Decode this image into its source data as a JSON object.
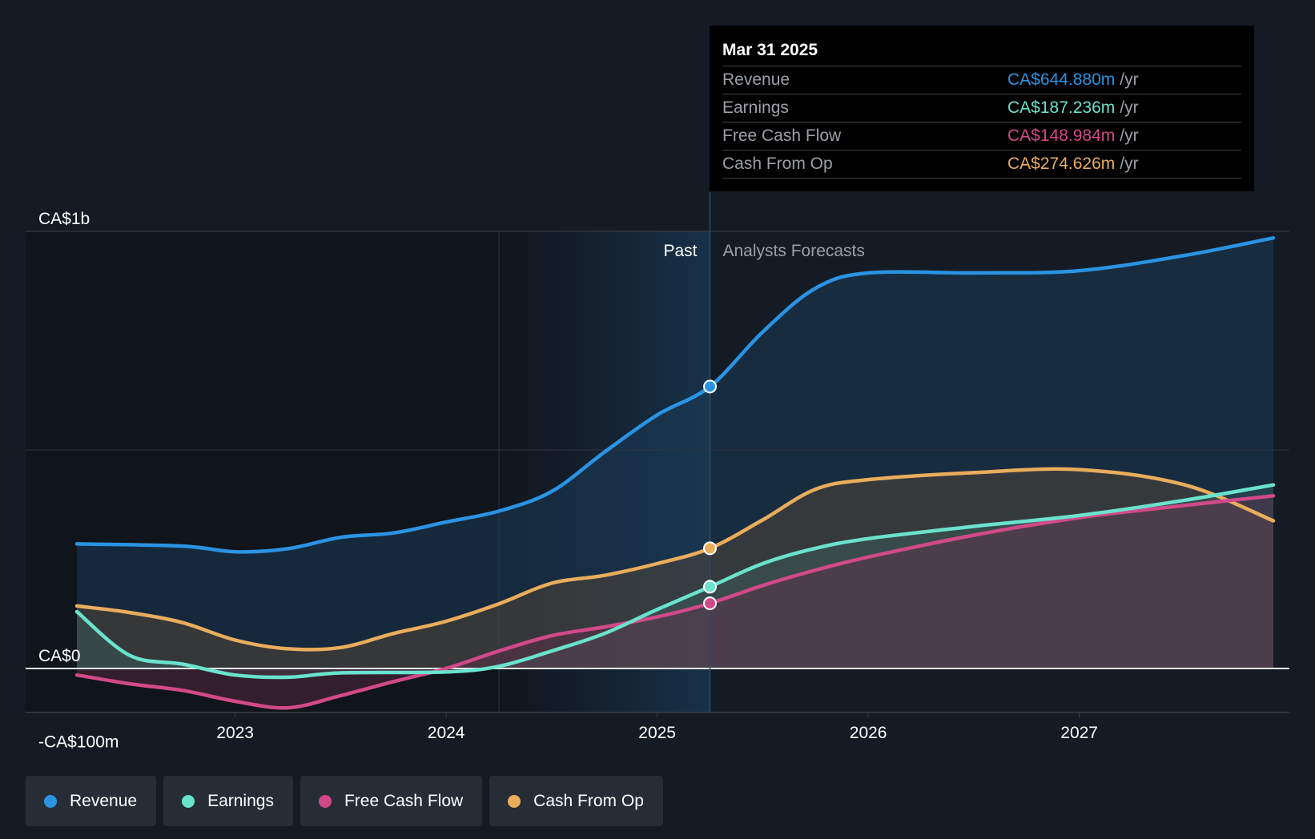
{
  "chart_data": {
    "type": "area",
    "x_label": "",
    "y_label": "",
    "x_range": [
      2022.25,
      2027.92
    ],
    "y_range": [
      -200,
      1000
    ],
    "y_ticks": [
      {
        "value": 1000,
        "label": "CA$1b"
      },
      {
        "value": 0,
        "label": "CA$0"
      },
      {
        "value": -100,
        "label": "-CA$100m"
      }
    ],
    "x_ticks": [
      {
        "value": 2023,
        "label": "2023"
      },
      {
        "value": 2024,
        "label": "2024"
      },
      {
        "value": 2025,
        "label": "2025"
      },
      {
        "value": 2026,
        "label": "2026"
      },
      {
        "value": 2027,
        "label": "2027"
      }
    ],
    "past_label": "Past",
    "forecast_label": "Analysts Forecasts",
    "divider_x": 2025.25,
    "highlight_start_x": 2024.25,
    "units": "CA$m",
    "series": [
      {
        "name": "Revenue",
        "color": "#2a93e3",
        "points": [
          [
            2022.25,
            285
          ],
          [
            2022.75,
            280
          ],
          [
            2023.0,
            267
          ],
          [
            2023.25,
            274
          ],
          [
            2023.5,
            300
          ],
          [
            2023.75,
            310
          ],
          [
            2024.0,
            335
          ],
          [
            2024.25,
            360
          ],
          [
            2024.5,
            405
          ],
          [
            2024.75,
            495
          ],
          [
            2025.0,
            580
          ],
          [
            2025.25,
            645
          ],
          [
            2025.5,
            770
          ],
          [
            2025.75,
            870
          ],
          [
            2026.0,
            905
          ],
          [
            2026.5,
            905
          ],
          [
            2027.0,
            910
          ],
          [
            2027.5,
            945
          ],
          [
            2027.92,
            985
          ]
        ]
      },
      {
        "name": "Earnings",
        "color": "#6ae2cd",
        "points": [
          [
            2022.25,
            130
          ],
          [
            2022.5,
            30
          ],
          [
            2022.75,
            10
          ],
          [
            2023.0,
            -15
          ],
          [
            2023.25,
            -20
          ],
          [
            2023.5,
            -10
          ],
          [
            2024.0,
            -8
          ],
          [
            2024.25,
            5
          ],
          [
            2024.5,
            40
          ],
          [
            2024.75,
            80
          ],
          [
            2025.0,
            135
          ],
          [
            2025.25,
            187
          ],
          [
            2025.5,
            240
          ],
          [
            2025.75,
            275
          ],
          [
            2026.0,
            297
          ],
          [
            2026.5,
            325
          ],
          [
            2027.0,
            350
          ],
          [
            2027.5,
            385
          ],
          [
            2027.92,
            420
          ]
        ]
      },
      {
        "name": "Free Cash Flow",
        "color": "#d2498a",
        "points": [
          [
            2022.25,
            -15
          ],
          [
            2022.5,
            -35
          ],
          [
            2022.75,
            -50
          ],
          [
            2023.0,
            -75
          ],
          [
            2023.25,
            -90
          ],
          [
            2023.5,
            -62
          ],
          [
            2023.75,
            -30
          ],
          [
            2024.0,
            0
          ],
          [
            2024.25,
            40
          ],
          [
            2024.5,
            75
          ],
          [
            2024.75,
            95
          ],
          [
            2025.0,
            118
          ],
          [
            2025.25,
            149
          ],
          [
            2025.5,
            190
          ],
          [
            2025.75,
            225
          ],
          [
            2026.0,
            255
          ],
          [
            2026.5,
            305
          ],
          [
            2027.0,
            345
          ],
          [
            2027.5,
            373
          ],
          [
            2027.92,
            395
          ]
        ]
      },
      {
        "name": "Cash From Op",
        "color": "#e9ad5c",
        "points": [
          [
            2022.25,
            143
          ],
          [
            2022.5,
            128
          ],
          [
            2022.75,
            105
          ],
          [
            2023.0,
            65
          ],
          [
            2023.25,
            45
          ],
          [
            2023.5,
            48
          ],
          [
            2023.75,
            80
          ],
          [
            2024.0,
            108
          ],
          [
            2024.25,
            148
          ],
          [
            2024.5,
            195
          ],
          [
            2024.75,
            213
          ],
          [
            2025.0,
            240
          ],
          [
            2025.25,
            275
          ],
          [
            2025.5,
            340
          ],
          [
            2025.75,
            410
          ],
          [
            2026.0,
            432
          ],
          [
            2026.5,
            448
          ],
          [
            2027.0,
            455
          ],
          [
            2027.5,
            420
          ],
          [
            2027.92,
            338
          ]
        ]
      }
    ],
    "tooltip": {
      "date": "Mar 31 2025",
      "unit": "/yr",
      "rows": [
        {
          "label": "Revenue",
          "value": "CA$644.880m",
          "color": "#2a93e3"
        },
        {
          "label": "Earnings",
          "value": "CA$187.236m",
          "color": "#6ae2cd"
        },
        {
          "label": "Free Cash Flow",
          "value": "CA$148.984m",
          "color": "#d2498a"
        },
        {
          "label": "Cash From Op",
          "value": "CA$274.626m",
          "color": "#e9ad5c"
        }
      ]
    },
    "legend": [
      {
        "label": "Revenue",
        "color": "#2a93e3"
      },
      {
        "label": "Earnings",
        "color": "#6ae2cd"
      },
      {
        "label": "Free Cash Flow",
        "color": "#d2498a"
      },
      {
        "label": "Cash From Op",
        "color": "#e9ad5c"
      }
    ]
  }
}
